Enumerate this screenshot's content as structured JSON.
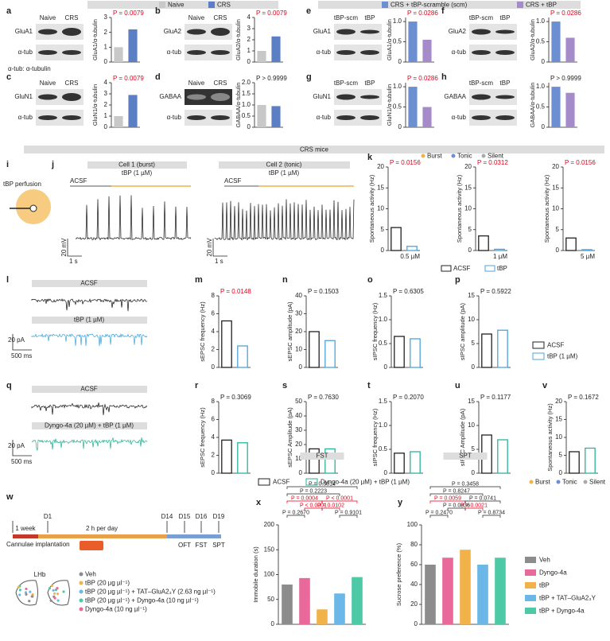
{
  "letters": [
    "a",
    "b",
    "c",
    "d",
    "e",
    "f",
    "g",
    "h",
    "i",
    "j",
    "k",
    "l",
    "m",
    "n",
    "o",
    "p",
    "q",
    "r",
    "s",
    "t",
    "u",
    "v",
    "w",
    "x",
    "y"
  ],
  "top_legend_left": [
    "Naive",
    "CRS"
  ],
  "top_legend_right": [
    "CRS + tBP-scramble (scm)",
    "CRS + tBP"
  ],
  "tub_note": "α-tub: α-tubulin",
  "crs_mice": "CRS mice",
  "blots": [
    {
      "lanes": [
        "Naive",
        "CRS"
      ],
      "rows": [
        "GluA1",
        "α-tub"
      ]
    },
    {
      "lanes": [
        "Naive",
        "CRS"
      ],
      "rows": [
        "GluA2",
        "α-tub"
      ]
    },
    {
      "lanes": [
        "Naive",
        "CRS"
      ],
      "rows": [
        "GluN1",
        "α-tub"
      ]
    },
    {
      "lanes": [
        "Naive",
        "CRS"
      ],
      "rows": [
        "GABAA",
        "α-tub"
      ]
    },
    {
      "lanes": [
        "tBP-scm",
        "tBP"
      ],
      "rows": [
        "GluA1",
        "α-tub"
      ]
    },
    {
      "lanes": [
        "tBP-scm",
        "tBP"
      ],
      "rows": [
        "GluA2",
        "α-tub"
      ]
    },
    {
      "lanes": [
        "tBP-scm",
        "tBP"
      ],
      "rows": [
        "GluN1",
        "α-tub"
      ]
    },
    {
      "lanes": [
        "tBP-scm",
        "tBP"
      ],
      "rows": [
        "GABAA",
        "α-tub"
      ]
    }
  ],
  "charts": [
    {
      "ylabel": "GluA1/α-tubulin",
      "p": "P = 0.0079",
      "p_red": true,
      "values": [
        1,
        2.2
      ],
      "colors": [
        "#c8c8c8",
        "#5b7fc4"
      ],
      "style": "fill",
      "ylim": [
        0,
        3
      ],
      "yticks": [
        0,
        1,
        2,
        3
      ]
    },
    {
      "ylabel": "GluA2/α-tubulin",
      "p": "P = 0.0079",
      "p_red": true,
      "values": [
        1,
        2.3
      ],
      "colors": [
        "#c8c8c8",
        "#5b7fc4"
      ],
      "style": "fill",
      "ylim": [
        0,
        4
      ],
      "yticks": [
        0,
        1,
        2,
        3,
        4
      ]
    },
    {
      "ylabel": "GluN1/α-tubulin",
      "p": "P = 0.0079",
      "p_red": true,
      "values": [
        1,
        2.9
      ],
      "colors": [
        "#c8c8c8",
        "#5b7fc4"
      ],
      "style": "fill",
      "ylim": [
        0,
        4
      ],
      "yticks": [
        0,
        1,
        2,
        3,
        4
      ]
    },
    {
      "ylabel": "GABAA/α-tubulin",
      "p": "P > 0.9999",
      "p_red": false,
      "values": [
        1,
        0.95
      ],
      "colors": [
        "#c8c8c8",
        "#5b7fc4"
      ],
      "style": "fill",
      "ylim": [
        0,
        2
      ],
      "yticks": [
        0,
        {
          "value": 0.5,
          "label": "0.5"
        },
        {
          "value": 1,
          "label": "1.0"
        },
        {
          "value": 1.5,
          "label": "1.5"
        },
        {
          "value": 2,
          "label": "2.0"
        }
      ]
    },
    {
      "ylabel": "GluA1/α-tubulin",
      "p": "P = 0.0286",
      "p_red": true,
      "values": [
        1,
        0.55
      ],
      "colors": [
        "#6b8fd1",
        "#a58bc9"
      ],
      "style": "fill",
      "ylim": [
        0,
        1.1
      ],
      "yticks": [
        0,
        {
          "value": 0.5,
          "label": "0.5"
        },
        {
          "value": 1,
          "label": "1.0"
        }
      ]
    },
    {
      "ylabel": "GluA2/α-tubulin",
      "p": "P = 0.0286",
      "p_red": true,
      "values": [
        1,
        0.6
      ],
      "colors": [
        "#6b8fd1",
        "#a58bc9"
      ],
      "style": "fill",
      "ylim": [
        0,
        1.1
      ],
      "yticks": [
        0,
        {
          "value": 0.5,
          "label": "0.5"
        },
        {
          "value": 1,
          "label": "1.0"
        }
      ]
    },
    {
      "ylabel": "GluN1/α-tubulin",
      "p": "P = 0.0286",
      "p_red": true,
      "values": [
        1,
        0.5
      ],
      "colors": [
        "#6b8fd1",
        "#a58bc9"
      ],
      "style": "fill",
      "ylim": [
        0,
        1.1
      ],
      "yticks": [
        0,
        {
          "value": 0.5,
          "label": "0.5"
        },
        {
          "value": 1,
          "label": "1.0"
        }
      ]
    },
    {
      "ylabel": "GABAA/α-tubulin",
      "p": "P > 0.9999",
      "p_red": false,
      "values": [
        1,
        0.85
      ],
      "colors": [
        "#6b8fd1",
        "#a58bc9"
      ],
      "style": "fill",
      "ylim": [
        0,
        1.1
      ],
      "yticks": [
        0,
        {
          "value": 0.5,
          "label": "0.5"
        },
        {
          "value": 1,
          "label": "1.0"
        }
      ]
    },
    {
      "ylabel": "Spontaneous activity (Hz)",
      "p": "P = 0.0156",
      "p_red": true,
      "xlabel": "0.5 µM",
      "values": [
        5.5,
        1
      ],
      "colors": [
        "#222",
        "#4fa3d8"
      ],
      "style": "outline",
      "ylim": [
        0,
        20
      ],
      "yticks": [
        0,
        5,
        10,
        15,
        20
      ]
    },
    {
      "ylabel": "Spontaneous activity (Hz)",
      "p": "P = 0.0312",
      "p_red": true,
      "xlabel": "1 µM",
      "values": [
        3.5,
        0.3
      ],
      "colors": [
        "#222",
        "#4fa3d8"
      ],
      "style": "outline",
      "ylim": [
        0,
        20
      ],
      "yticks": [
        0,
        5,
        10,
        15,
        20
      ]
    },
    {
      "ylabel": "Spontaneous activity (Hz)",
      "p": "P = 0.0156",
      "p_red": true,
      "xlabel": "5 µM",
      "values": [
        3,
        0.2
      ],
      "colors": [
        "#222",
        "#4fa3d8"
      ],
      "style": "outline",
      "ylim": [
        0,
        20
      ],
      "yticks": [
        0,
        5,
        10,
        15,
        20
      ]
    },
    {
      "ylabel": "sEPSC frequency (Hz)",
      "p": "P = 0.0148",
      "p_red": true,
      "values": [
        5.2,
        2.4
      ],
      "colors": [
        "#222",
        "#4fa3d8"
      ],
      "style": "outline",
      "ylim": [
        0,
        8
      ],
      "yticks": [
        0,
        2,
        4,
        6,
        8
      ]
    },
    {
      "ylabel": "sEPSC amplitude (pA)",
      "p": "P = 0.1503",
      "p_red": false,
      "values": [
        20,
        15
      ],
      "colors": [
        "#222",
        "#4fa3d8"
      ],
      "style": "outline",
      "ylim": [
        0,
        40
      ],
      "yticks": [
        0,
        10,
        20,
        30,
        40
      ]
    },
    {
      "ylabel": "sIPSC frequency (Hz)",
      "p": "P = 0.6305",
      "p_red": false,
      "values": [
        0.65,
        0.6
      ],
      "colors": [
        "#222",
        "#4fa3d8"
      ],
      "style": "outline",
      "ylim": [
        0,
        1.5
      ],
      "yticks": [
        0,
        {
          "value": 0.5,
          "label": "0.5"
        },
        {
          "value": 1,
          "label": "1.0"
        },
        {
          "value": 1.5,
          "label": "1.5"
        }
      ]
    },
    {
      "ylabel": "sIPSC amplitude (pA)",
      "p": "P = 0.5922",
      "p_red": false,
      "values": [
        7,
        7.8
      ],
      "colors": [
        "#222",
        "#4fa3d8"
      ],
      "style": "outline",
      "ylim": [
        0,
        15
      ],
      "yticks": [
        0,
        5,
        10,
        15
      ]
    },
    {
      "ylabel": "sEPSC frequency (Hz)",
      "p": "P = 0.3069",
      "p_red": false,
      "values": [
        3.7,
        3.4
      ],
      "colors": [
        "#222",
        "#2bb39a"
      ],
      "style": "outline",
      "ylim": [
        0,
        8
      ],
      "yticks": [
        0,
        2,
        4,
        6,
        8
      ]
    },
    {
      "ylabel": "sEPSC Amplitude (pA)",
      "p": "P = 0.7630",
      "p_red": false,
      "values": [
        17,
        17
      ],
      "colors": [
        "#222",
        "#2bb39a"
      ],
      "style": "outline",
      "ylim": [
        0,
        50
      ],
      "yticks": [
        0,
        10,
        20,
        30,
        40,
        50
      ]
    },
    {
      "ylabel": "sIPSC frequency (Hz)",
      "p": "P = 0.2070",
      "p_red": false,
      "values": [
        0.42,
        0.45
      ],
      "colors": [
        "#222",
        "#2bb39a"
      ],
      "style": "outline",
      "ylim": [
        0,
        1.5
      ],
      "yticks": [
        0,
        {
          "value": 0.5,
          "label": "0.5"
        },
        {
          "value": 1,
          "label": "1.0"
        },
        {
          "value": 1.5,
          "label": "1.5"
        }
      ]
    },
    {
      "ylabel": "sIPSC Amplitude (pA)",
      "p": "P = 0.1177",
      "p_red": false,
      "values": [
        8,
        7
      ],
      "colors": [
        "#222",
        "#2bb39a"
      ],
      "style": "outline",
      "ylim": [
        0,
        15
      ],
      "yticks": [
        0,
        5,
        10,
        15
      ]
    },
    {
      "ylabel": "Spontaneous activity (Hz)",
      "p": "P = 0.1672",
      "p_red": false,
      "values": [
        6,
        7
      ],
      "colors": [
        "#222",
        "#2bb39a"
      ],
      "style": "outline",
      "ylim": [
        0,
        20
      ],
      "yticks": [
        0,
        5,
        10,
        15,
        20
      ]
    },
    {
      "title": "FST",
      "ylabel": "Immobile duration (s)",
      "values": [
        80,
        93,
        30,
        62,
        95
      ],
      "colors": [
        "#8c8c8c",
        "#e8699a",
        "#f2b24a",
        "#6bb8e8",
        "#4ec9a6"
      ],
      "style": "fill",
      "ylim": [
        0,
        200
      ],
      "yticks": [
        0,
        50,
        100,
        150,
        200
      ],
      "comparisons": [
        {
          "text": "P = 0.3614",
          "red": false
        },
        {
          "text": "P = 0.2223",
          "red": false
        },
        {
          "text": "P = 0.0004",
          "red": true
        },
        {
          "text": "P < 0.0001",
          "red": true
        },
        {
          "text": "P < 0.0001",
          "red": true
        },
        {
          "text": "P = 0.0102",
          "red": true
        },
        {
          "text": "P = 0.2670",
          "red": false
        },
        {
          "text": "P = 0.9101",
          "red": false
        }
      ]
    },
    {
      "title": "SPT",
      "ylabel": "Sucrose preference (%)",
      "values": [
        60,
        67,
        75,
        60,
        67
      ],
      "colors": [
        "#8c8c8c",
        "#e8699a",
        "#f2b24a",
        "#6bb8e8",
        "#4ec9a6"
      ],
      "style": "fill",
      "ylim": [
        0,
        100
      ],
      "yticks": [
        0,
        20,
        40,
        60,
        80,
        100
      ],
      "comparisons": [
        {
          "text": "P = 0.3458",
          "red": false
        },
        {
          "text": "P = 0.8247",
          "red": false
        },
        {
          "text": "P = 0.0059",
          "red": true
        },
        {
          "text": "P = 0.0741",
          "red": false
        },
        {
          "text": "P = 0.0836",
          "red": false
        },
        {
          "text": "P = 0.0021",
          "red": true
        },
        {
          "text": "P = 0.2470",
          "red": false
        },
        {
          "text": "P = 0.8734",
          "red": false
        }
      ]
    }
  ],
  "i": {
    "label": "tBP perfusion"
  },
  "j": {
    "cell1": "Cell 1 (burst)",
    "cell2": "Cell 2 (tonic)",
    "drug1": "tBP (1 µM)",
    "drug2": "tBP (1 µM)",
    "acsf1": "ACSF",
    "acsf2": "ACSF",
    "scale_v1": "20 mV",
    "scale_t1": "1 s",
    "scale_v2": "20 mV",
    "scale_t2": "1 s"
  },
  "k_legend": {
    "types": [
      "Burst",
      "Tonic",
      "Silent"
    ],
    "conds": [
      "ACSF",
      "tBP"
    ]
  },
  "l": {
    "acsf": "ACSF",
    "drug": "tBP (1 µM)",
    "scale_i": "20 pA",
    "scale_t": "500 ms"
  },
  "p_legend": [
    "ACSF",
    "tBP (1 µM)"
  ],
  "q": {
    "acsf": "ACSF",
    "drug": "Dyngo-4a (20 µM) + tBP (1 µM)",
    "scale_i": "20 pA",
    "scale_t": "500 ms"
  },
  "rv_legend": [
    "ACSF",
    "Dyngo-4a (20 µM) + tBP (1 µM)"
  ],
  "v_legend": [
    "Burst",
    "Tonic",
    "Silent"
  ],
  "w": {
    "week": "1 week",
    "d1": "D1",
    "perday": "2 h per day",
    "d14": "D14",
    "d15": "D15",
    "d16": "D16",
    "d19": "D19",
    "cannulae": "Cannulae implantation",
    "oft": "OFT",
    "fst": "FST",
    "spt": "SPT",
    "lhb": "LHb",
    "treatments": [
      "Veh",
      "tBP (20 µg µl⁻¹)",
      "tBP (20 µg µl⁻¹) + TAT–GluA2₃Y (2.63 ng µl⁻¹)",
      "tBP (20 µg µl⁻¹) + Dyngo-4a (10 ng µl⁻¹)",
      "Dyngo-4a (10 ng µl⁻¹)"
    ]
  },
  "group_legend": [
    "Veh",
    "Dyngo-4a",
    "tBP",
    "tBP + TAT–GluA2₃Y",
    "tBP + Dyngo-4a"
  ]
}
